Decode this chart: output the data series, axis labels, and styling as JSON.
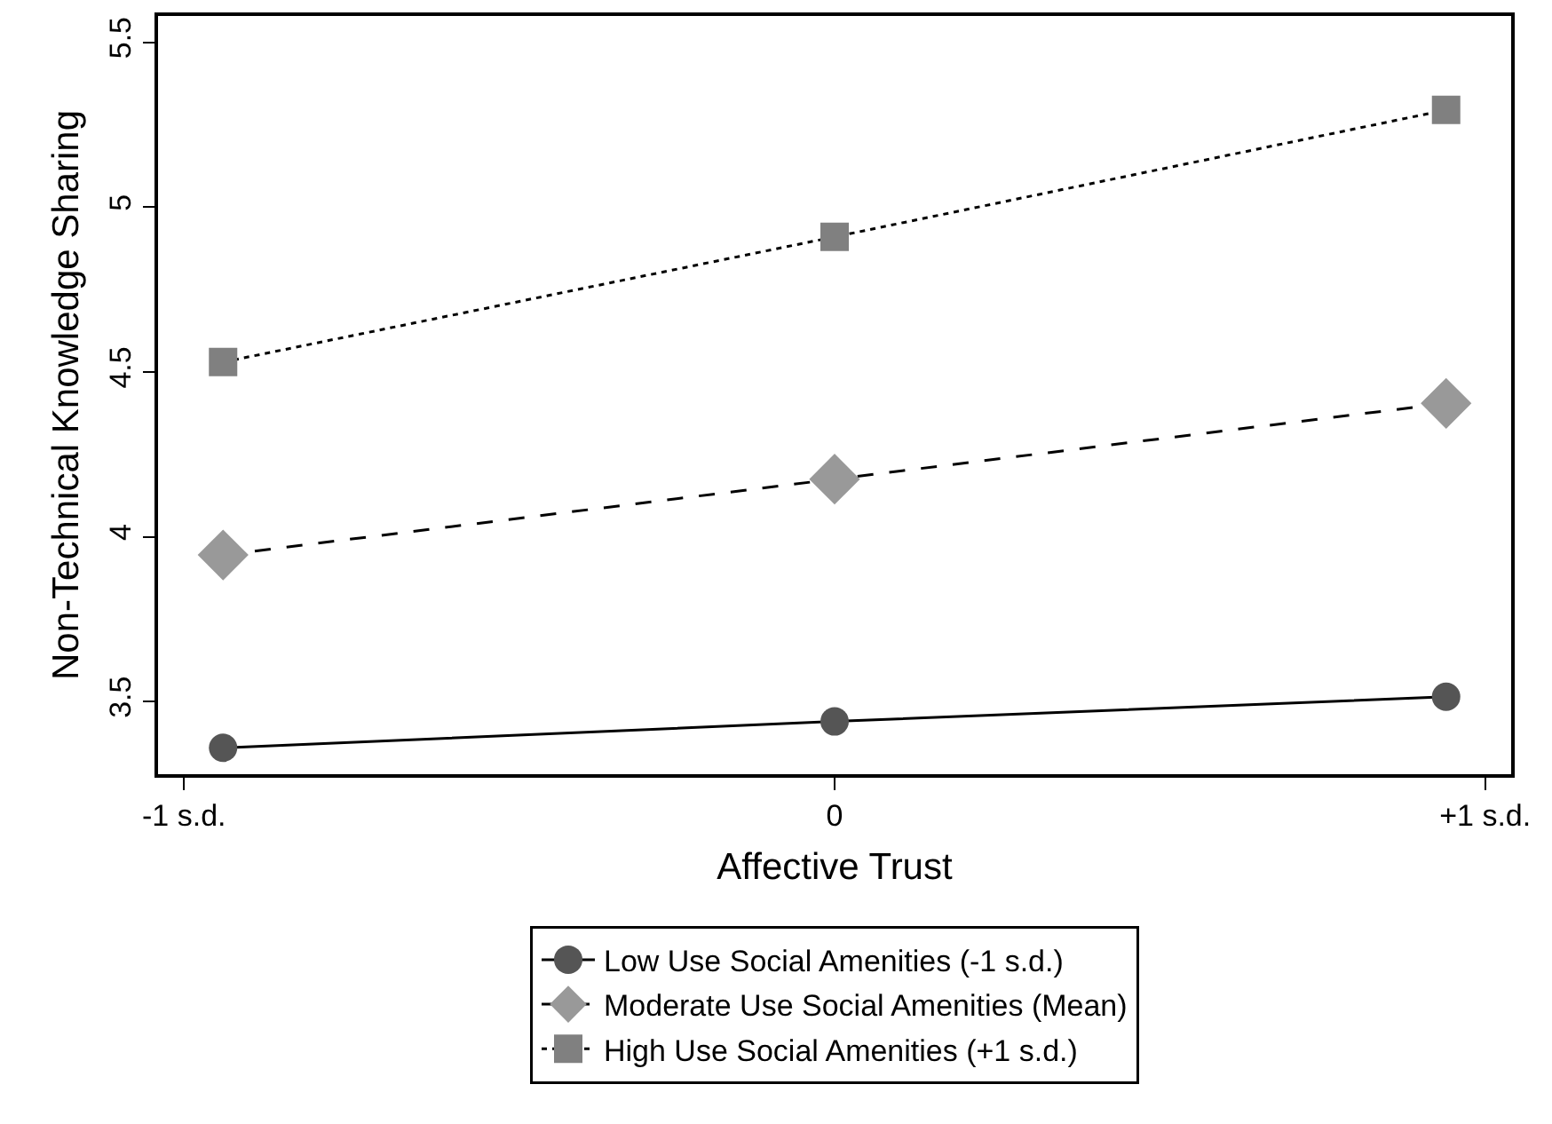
{
  "chart_data": {
    "type": "line",
    "xlabel": "Affective Trust",
    "ylabel": "Non-Technical Knowledge Sharing",
    "x": [
      -0.94,
      0,
      0.94
    ],
    "series": [
      {
        "name": "Low Use Social Amenities (-1 s.d.)",
        "color": "#555555",
        "marker": "circle",
        "line_style": "solid",
        "values": [
          3.36,
          3.44,
          3.515
        ]
      },
      {
        "name": "Moderate Use Social Amenities (Mean)",
        "color": "#999999",
        "marker": "diamond",
        "line_style": "dashed",
        "values": [
          3.945,
          4.175,
          4.405
        ]
      },
      {
        "name": "High Use Social Amenities (+1 s.d.)",
        "color": "#808080",
        "marker": "square",
        "line_style": "dotted",
        "values": [
          4.53,
          4.91,
          5.295
        ]
      }
    ],
    "xlim": [
      -1.04,
      1.04
    ],
    "xticks": [
      {
        "value": -1,
        "label": "-1 s.d."
      },
      0,
      {
        "value": 1,
        "label": "+1 s.d."
      }
    ],
    "ylim": [
      3.28,
      5.58
    ],
    "yticks": [
      3.5,
      4,
      4.5,
      5,
      5.5
    ],
    "grid": false,
    "legend": "bottom"
  }
}
